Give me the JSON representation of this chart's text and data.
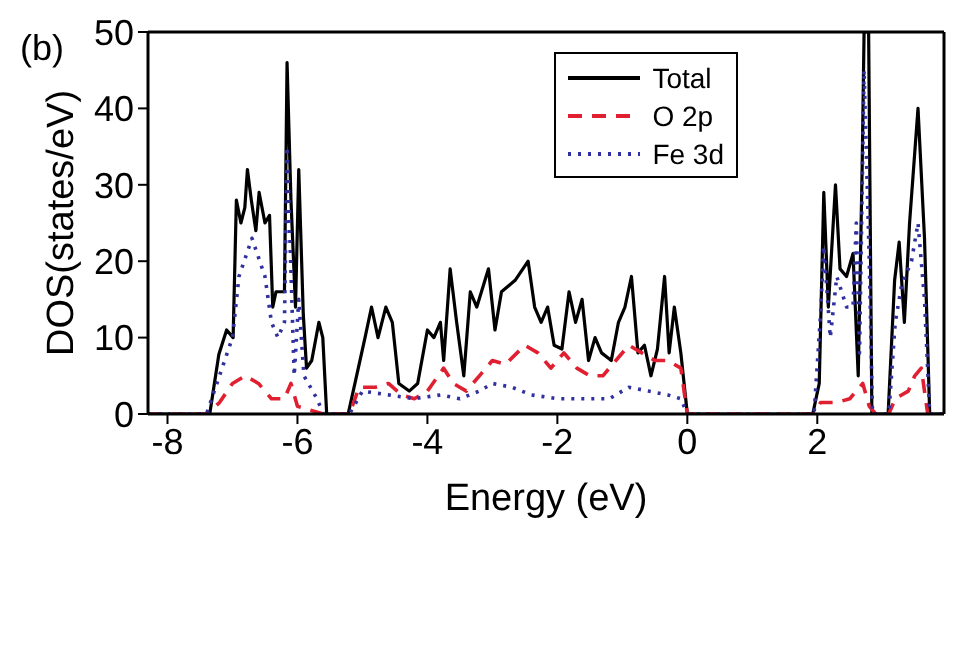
{
  "chart_data": {
    "type": "line",
    "xlabel": "Energy (eV)",
    "ylabel": "DOS(states/eV)",
    "annotations": [
      "(b)"
    ],
    "xlim": [
      -8.3,
      3.95
    ],
    "xticks": [
      -8,
      -6,
      -4,
      -2,
      0,
      2
    ],
    "ylim": [
      0,
      50
    ],
    "yticks": [
      0,
      10,
      20,
      30,
      40,
      50
    ],
    "grid": false,
    "legend": "top right",
    "marker": "none",
    "series": [
      {
        "name": "Total",
        "color": "#000000",
        "line_style": "solid",
        "x": [
          -8.3,
          -7.35,
          -7.21,
          -7.09,
          -6.99,
          -6.94,
          -6.87,
          -6.81,
          -6.77,
          -6.71,
          -6.64,
          -6.59,
          -6.5,
          -6.43,
          -6.38,
          -6.33,
          -6.2,
          -6.16,
          -6.1,
          -6.03,
          -5.98,
          -5.91,
          -5.86,
          -5.78,
          -5.67,
          -5.61,
          -5.55,
          -5.22,
          -5.09,
          -4.96,
          -4.86,
          -4.76,
          -4.64,
          -4.54,
          -4.44,
          -4.28,
          -4.15,
          -4,
          -3.9,
          -3.8,
          -3.75,
          -3.65,
          -3.55,
          -3.44,
          -3.34,
          -3.24,
          -3.06,
          -2.96,
          -2.86,
          -2.65,
          -2.45,
          -2.35,
          -2.25,
          -2.15,
          -2.05,
          -1.93,
          -1.82,
          -1.72,
          -1.62,
          -1.52,
          -1.42,
          -1.32,
          -1.17,
          -1.06,
          -0.96,
          -0.86,
          -0.76,
          -0.66,
          -0.56,
          -0.46,
          -0.35,
          -0.28,
          -0.2,
          -0.1,
          0,
          1.93,
          2.03,
          2.1,
          2.17,
          2.28,
          2.35,
          2.45,
          2.55,
          2.63,
          2.69,
          2.72,
          2.79,
          2.84,
          3.09,
          3.19,
          3.26,
          3.34,
          3.42,
          3.55,
          3.65,
          3.73,
          3.95
        ],
        "values": [
          0,
          0,
          7.8,
          11,
          10,
          28,
          25,
          27,
          32,
          28,
          24,
          29,
          25,
          26,
          14,
          16,
          16,
          46,
          28,
          14,
          32,
          13,
          6,
          7,
          12,
          10,
          0,
          0,
          5,
          10,
          14,
          10,
          14,
          12,
          4,
          3,
          4,
          11,
          10,
          12,
          7,
          19,
          12,
          5,
          16,
          14,
          19,
          11,
          16,
          17.5,
          20,
          14,
          12,
          14,
          9,
          8.5,
          16,
          12,
          15,
          7,
          10,
          8,
          7,
          12,
          14,
          18,
          8,
          9,
          5,
          8.5,
          18,
          8,
          14,
          8,
          0,
          0,
          4,
          29,
          14,
          30,
          19,
          18,
          21,
          5,
          32,
          50,
          50,
          0,
          0,
          17.5,
          22.5,
          12,
          25,
          40,
          23,
          0,
          0
        ]
      },
      {
        "name": "O 2p",
        "color": "#e02030",
        "line_style": "dashed",
        "x": [
          -8.3,
          -7.4,
          -7.2,
          -7,
          -6.8,
          -6.6,
          -6.4,
          -6.2,
          -6.1,
          -6,
          -5.8,
          -5.6,
          -5.2,
          -5.05,
          -4.8,
          -4.6,
          -4.4,
          -4.2,
          -4,
          -3.75,
          -3.6,
          -3.4,
          -3.2,
          -3,
          -2.8,
          -2.5,
          -2.3,
          -2.1,
          -1.9,
          -1.7,
          -1.5,
          -1.3,
          -1.1,
          -0.9,
          -0.7,
          -0.5,
          -0.3,
          -0.1,
          0,
          1.95,
          2.05,
          2.3,
          2.5,
          2.7,
          2.8,
          2.9,
          3.1,
          3.2,
          3.4,
          3.5,
          3.6,
          3.7,
          3.95
        ],
        "values": [
          0,
          0,
          1.5,
          4,
          5,
          4,
          2,
          2,
          4,
          1,
          0.5,
          0,
          0,
          3.5,
          3.5,
          4,
          2.5,
          2,
          3,
          6,
          4,
          3,
          5,
          7,
          6.5,
          9,
          8,
          6,
          8,
          6,
          5,
          5,
          7,
          9,
          8,
          7,
          7,
          6,
          0,
          0,
          1.5,
          1.5,
          2,
          4,
          1,
          0,
          0,
          2,
          3,
          5,
          6,
          0,
          0
        ]
      },
      {
        "name": "Fe 3d",
        "color": "#3030a0",
        "line_style": "dotted",
        "x": [
          -8.3,
          -7.4,
          -7.2,
          -7,
          -6.9,
          -6.7,
          -6.5,
          -6.4,
          -6.3,
          -6.2,
          -6.16,
          -6.05,
          -5.98,
          -5.9,
          -5.7,
          -5.6,
          -5.2,
          -5,
          -4.6,
          -4.2,
          -3.8,
          -3.5,
          -3.2,
          -3,
          -2.7,
          -2.4,
          -2,
          -1.6,
          -1.2,
          -0.9,
          -0.6,
          -0.3,
          -0.1,
          0,
          1.95,
          2.05,
          2.1,
          2.2,
          2.3,
          2.45,
          2.55,
          2.6,
          2.65,
          2.72,
          2.8,
          2.85,
          3.1,
          3.2,
          3.3,
          3.45,
          3.55,
          3.65,
          3.73,
          3.95
        ],
        "values": [
          0,
          0,
          5,
          10,
          18,
          23,
          18,
          12,
          10,
          12,
          35,
          5,
          15,
          5,
          2,
          0,
          0,
          3,
          2.5,
          2,
          2.5,
          2,
          3,
          4,
          3.5,
          2.5,
          2,
          2,
          2,
          3.5,
          3,
          2.5,
          2,
          0,
          0,
          13,
          22,
          10,
          18,
          14,
          14,
          25,
          8,
          45,
          20,
          0,
          0,
          12,
          17,
          20,
          25,
          15,
          0,
          0
        ]
      }
    ]
  }
}
